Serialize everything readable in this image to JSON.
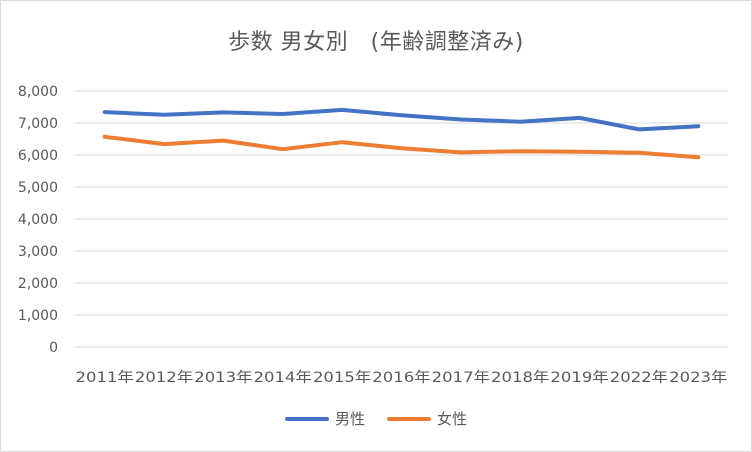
{
  "chart_data": {
    "type": "line",
    "title": "歩数 男女別　(年齢調整済み)",
    "xlabel": "",
    "ylabel": "",
    "categories": [
      "2011年",
      "2012年",
      "2013年",
      "2014年",
      "2015年",
      "2016年",
      "2017年",
      "2018年",
      "2019年",
      "2022年",
      "2023年"
    ],
    "series": [
      {
        "name": "男性",
        "color": "#4472C4",
        "values": [
          7340,
          7260,
          7330,
          7280,
          7410,
          7240,
          7110,
          7040,
          7160,
          6800,
          6900
        ]
      },
      {
        "name": "女性",
        "color": "#ED7D31",
        "values": [
          6570,
          6340,
          6450,
          6180,
          6400,
          6210,
          6080,
          6120,
          6100,
          6070,
          5930
        ]
      }
    ],
    "ylim": [
      0,
      8000
    ],
    "yticks": [
      "0",
      "1,000",
      "2,000",
      "3,000",
      "4,000",
      "5,000",
      "6,000",
      "7,000",
      "8,000"
    ],
    "grid": true,
    "legend_position": "bottom"
  }
}
